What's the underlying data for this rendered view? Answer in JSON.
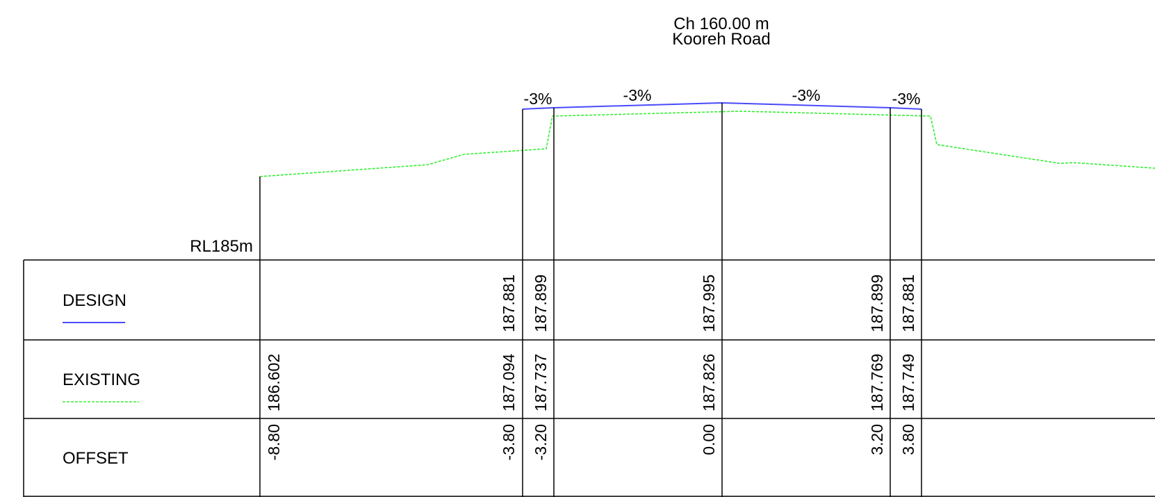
{
  "header": {
    "chainage": "Ch 160.00 m",
    "road_name": "Kooreh Road"
  },
  "datum_label": "RL185m",
  "grade_labels": [
    "-3%",
    "-3%",
    "-3%",
    "-3%"
  ],
  "rows": {
    "design": {
      "label": "DESIGN",
      "line_color": "#4a4aff",
      "line_style": "solid"
    },
    "existing": {
      "label": "EXISTING",
      "line_color": "#33ee33",
      "line_style": "dashed"
    },
    "offset": {
      "label": "OFFSET"
    }
  },
  "stations": [
    {
      "offset": "-8.80",
      "design": "",
      "existing": "186.602"
    },
    {
      "offset": "-3.80",
      "design": "187.881",
      "existing": "187.094"
    },
    {
      "offset": "-3.20",
      "design": "187.899",
      "existing": "187.737"
    },
    {
      "offset": "0.00",
      "design": "187.995",
      "existing": "187.826"
    },
    {
      "offset": "3.20",
      "design": "187.899",
      "existing": "187.769"
    },
    {
      "offset": "3.80",
      "design": "187.881",
      "existing": "187.749"
    }
  ]
}
